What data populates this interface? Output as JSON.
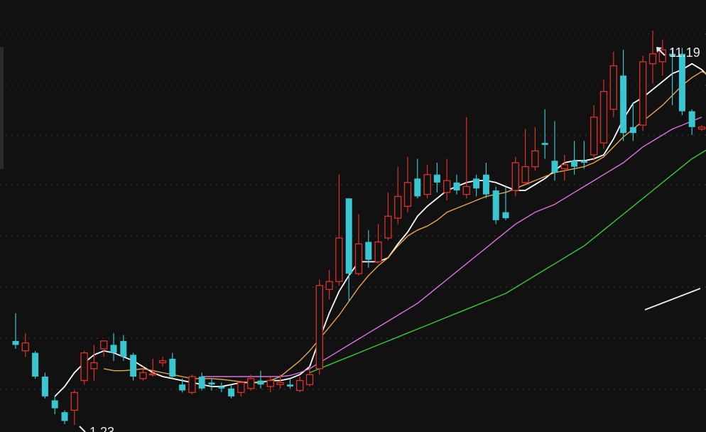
{
  "chart_data": {
    "type": "candlestick",
    "ylim": [
      0.8,
      11.6
    ],
    "grid": true,
    "colors": {
      "background": "#111112",
      "grid": "#3a3a3a",
      "up": "#e0302a",
      "down": "#39c6d0",
      "ma_short": "#ffffff",
      "ma_mid": "#e8a64a",
      "ma_long": "#e070e0",
      "ma_longest": "#33cc33"
    },
    "annotations": {
      "high_label": "11.19",
      "low_label": "1.23"
    },
    "candles": [
      [
        3.35,
        3.25,
        4.05,
        3.15
      ],
      [
        3.1,
        3.3,
        3.55,
        2.95
      ],
      [
        3.05,
        2.45,
        3.1,
        2.4
      ],
      [
        2.45,
        1.95,
        2.55,
        1.9
      ],
      [
        1.85,
        1.65,
        1.95,
        1.5
      ],
      [
        1.55,
        1.33,
        1.6,
        1.25
      ],
      [
        1.6,
        2.05,
        2.1,
        1.23
      ],
      [
        2.35,
        3.05,
        3.1,
        2.25
      ],
      [
        2.65,
        2.8,
        3.25,
        2.35
      ],
      [
        3.15,
        3.35,
        3.35,
        2.95
      ],
      [
        3.25,
        3.05,
        3.55,
        2.85
      ],
      [
        3.35,
        2.95,
        3.5,
        2.85
      ],
      [
        3.0,
        2.45,
        3.05,
        2.35
      ],
      [
        2.4,
        2.55,
        2.7,
        2.35
      ],
      [
        2.5,
        2.52,
        2.9,
        2.45
      ],
      [
        2.8,
        2.85,
        2.95,
        2.7
      ],
      [
        2.9,
        2.45,
        3.05,
        2.4
      ],
      [
        2.25,
        2.1,
        2.4,
        2.05
      ],
      [
        2.05,
        2.45,
        2.5,
        2.0
      ],
      [
        2.45,
        2.15,
        2.55,
        2.1
      ],
      [
        2.3,
        2.25,
        2.4,
        2.1
      ],
      [
        2.2,
        2.15,
        2.3,
        2.05
      ],
      [
        2.15,
        1.95,
        2.25,
        1.9
      ],
      [
        2.05,
        2.3,
        2.35,
        1.95
      ],
      [
        2.15,
        2.4,
        2.5,
        2.1
      ],
      [
        2.35,
        2.25,
        2.6,
        2.15
      ],
      [
        2.2,
        2.35,
        2.45,
        2.05
      ],
      [
        2.25,
        2.3,
        2.5,
        2.15
      ],
      [
        2.25,
        2.2,
        2.4,
        2.15
      ],
      [
        2.1,
        2.35,
        2.45,
        2.05
      ],
      [
        2.25,
        2.5,
        2.7,
        2.2
      ],
      [
        2.65,
        4.75,
        4.9,
        2.5
      ],
      [
        4.65,
        4.85,
        5.15,
        4.4
      ],
      [
        4.85,
        5.95,
        7.55,
        4.75
      ],
      [
        6.95,
        5.05,
        6.95,
        4.35
      ],
      [
        5.05,
        5.8,
        6.55,
        5.0
      ],
      [
        5.85,
        5.4,
        6.15,
        5.2
      ],
      [
        5.35,
        5.85,
        6.3,
        5.3
      ],
      [
        5.95,
        6.5,
        7.1,
        5.9
      ],
      [
        6.45,
        7.0,
        7.75,
        6.3
      ],
      [
        6.75,
        7.35,
        8.0,
        6.6
      ],
      [
        7.45,
        7.0,
        7.95,
        6.95
      ],
      [
        7.05,
        7.55,
        7.8,
        6.95
      ],
      [
        7.55,
        7.35,
        7.85,
        7.1
      ],
      [
        7.1,
        7.4,
        7.95,
        6.9
      ],
      [
        7.35,
        7.15,
        7.55,
        7.05
      ],
      [
        7.05,
        7.25,
        9.0,
        6.95
      ],
      [
        7.45,
        7.2,
        7.55,
        7.0
      ],
      [
        7.55,
        7.05,
        7.85,
        6.95
      ],
      [
        7.15,
        6.4,
        7.25,
        6.3
      ],
      [
        6.6,
        6.45,
        7.25,
        6.4
      ],
      [
        7.15,
        7.85,
        8.0,
        7.0
      ],
      [
        7.35,
        7.75,
        8.7,
        7.3
      ],
      [
        7.75,
        8.15,
        8.75,
        7.65
      ],
      [
        8.35,
        8.3,
        9.2,
        7.95
      ],
      [
        7.9,
        7.6,
        8.9,
        7.4
      ],
      [
        7.7,
        7.8,
        8.05,
        7.4
      ],
      [
        7.9,
        7.75,
        8.4,
        7.55
      ],
      [
        7.9,
        7.85,
        8.4,
        7.7
      ],
      [
        8.05,
        9.0,
        9.3,
        7.9
      ],
      [
        8.35,
        9.65,
        9.95,
        8.2
      ],
      [
        9.2,
        10.3,
        10.65,
        9.0
      ],
      [
        10.05,
        8.6,
        10.7,
        8.4
      ],
      [
        8.75,
        8.6,
        9.35,
        8.4
      ],
      [
        8.8,
        10.4,
        10.55,
        8.65
      ],
      [
        10.35,
        10.6,
        11.19,
        9.85
      ],
      [
        10.4,
        10.7,
        10.95,
        10.05
      ],
      [
        10.6,
        10.55,
        10.75,
        9.3
      ],
      [
        10.6,
        9.15,
        10.75,
        9.05
      ],
      [
        9.15,
        8.75,
        9.2,
        8.55
      ],
      [
        8.7,
        8.75,
        8.8,
        8.65
      ]
    ],
    "series": [
      {
        "type": "ma_short",
        "x_start": 4,
        "values": [
          1.95,
          2.2,
          2.55,
          2.8,
          3.0,
          3.1,
          3.05,
          2.95,
          2.85,
          2.7,
          2.55,
          2.45,
          2.4,
          2.35,
          2.3,
          2.25,
          2.2,
          2.2,
          2.25,
          2.3,
          2.3,
          2.3,
          2.35,
          2.35,
          2.4,
          2.5,
          2.7,
          3.4,
          4.05,
          4.6,
          5.0,
          5.35,
          5.35,
          5.35,
          5.45,
          5.8,
          6.1,
          6.5,
          6.75,
          6.95,
          7.15,
          7.25,
          7.35,
          7.4,
          7.4,
          7.35,
          7.25,
          7.15,
          7.15,
          7.3,
          7.45,
          7.65,
          7.85,
          7.9,
          7.9,
          7.95,
          8.05,
          8.45,
          8.95,
          9.35,
          9.5,
          9.7,
          9.9,
          10.1,
          10.2,
          10.35,
          10.2,
          9.95
        ]
      },
      {
        "type": "ma_mid",
        "x_start": 9,
        "values": [
          2.65,
          2.6,
          2.6,
          2.62,
          2.65,
          2.6,
          2.55,
          2.5,
          2.45,
          2.4,
          2.4,
          2.4,
          2.38,
          2.35,
          2.32,
          2.3,
          2.32,
          2.35,
          2.45,
          2.65,
          2.85,
          3.1,
          3.4,
          3.7,
          4.0,
          4.35,
          4.7,
          5.0,
          5.25,
          5.45,
          5.75,
          6.0,
          6.15,
          6.25,
          6.4,
          6.6,
          6.7,
          6.8,
          6.9,
          7.0,
          7.05,
          7.1,
          7.2,
          7.3,
          7.4,
          7.5,
          7.6,
          7.65,
          7.7,
          7.75,
          7.85,
          8.0,
          8.25,
          8.5,
          8.7,
          8.9,
          9.1,
          9.3,
          9.55,
          9.8,
          10.0,
          10.15,
          10.05
        ]
      },
      {
        "type": "ma_long",
        "x_start": 19,
        "values": [
          2.45,
          2.45,
          2.45,
          2.45,
          2.45,
          2.45,
          2.45,
          2.45,
          2.45,
          2.48,
          2.55,
          2.65,
          2.8,
          2.95,
          3.1,
          3.25,
          3.4,
          3.55,
          3.7,
          3.85,
          4.0,
          4.15,
          4.3,
          4.5,
          4.7,
          4.9,
          5.1,
          5.3,
          5.5,
          5.7,
          5.9,
          6.1,
          6.3,
          6.45,
          6.6,
          6.7,
          6.8,
          6.95,
          7.1,
          7.25,
          7.4,
          7.55,
          7.7,
          7.85,
          8.05,
          8.25,
          8.4,
          8.55,
          8.7,
          8.8,
          8.9,
          9.0
        ]
      },
      {
        "type": "ma_longest",
        "x_start": 30,
        "values": [
          2.55,
          2.65,
          2.75,
          2.85,
          2.95,
          3.05,
          3.15,
          3.25,
          3.35,
          3.45,
          3.55,
          3.65,
          3.75,
          3.85,
          3.95,
          4.05,
          4.15,
          4.25,
          4.35,
          4.45,
          4.55,
          4.7,
          4.85,
          5.0,
          5.15,
          5.3,
          5.45,
          5.6,
          5.75,
          5.95,
          6.15,
          6.35,
          6.55,
          6.75,
          6.95,
          7.15,
          7.35,
          7.55,
          7.75,
          7.95,
          8.1,
          8.25
        ]
      }
    ]
  }
}
